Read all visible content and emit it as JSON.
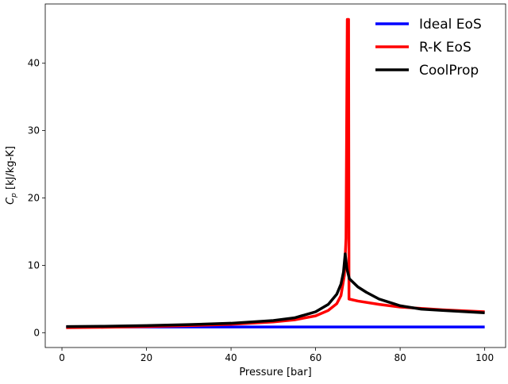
{
  "chart_data": {
    "type": "line",
    "title": "",
    "xlabel": "Pressure [bar]",
    "ylabel_main": "C",
    "ylabel_sub": "p",
    "ylabel_rest": " [kJ/kg-K]",
    "xlim": [
      -3.95,
      104.95
    ],
    "ylim": [
      -2.2,
      48.8
    ],
    "xticks": [
      0,
      20,
      40,
      60,
      80,
      100
    ],
    "yticks": [
      0,
      10,
      20,
      30,
      40
    ],
    "grid": false,
    "legend_position": "top-right",
    "series": [
      {
        "name": "Ideal EoS",
        "color": "#0000ff",
        "points": [
          [
            1,
            0.85
          ],
          [
            100,
            0.85
          ]
        ]
      },
      {
        "name": "R-K EoS",
        "color": "#ff0000",
        "points": [
          [
            1,
            0.75
          ],
          [
            10,
            0.8
          ],
          [
            20,
            0.9
          ],
          [
            30,
            1.05
          ],
          [
            40,
            1.25
          ],
          [
            50,
            1.6
          ],
          [
            55,
            1.9
          ],
          [
            60,
            2.5
          ],
          [
            63,
            3.3
          ],
          [
            65,
            4.3
          ],
          [
            66,
            5.5
          ],
          [
            66.8,
            8.5
          ],
          [
            67.2,
            14
          ],
          [
            67.5,
            46.5
          ],
          [
            67.8,
            46.5
          ],
          [
            67.9,
            5.0
          ],
          [
            70,
            4.7
          ],
          [
            75,
            4.2
          ],
          [
            80,
            3.8
          ],
          [
            90,
            3.4
          ],
          [
            100,
            3.1
          ]
        ]
      },
      {
        "name": "CoolProp",
        "color": "#000000",
        "points": [
          [
            1,
            0.9
          ],
          [
            10,
            0.95
          ],
          [
            20,
            1.05
          ],
          [
            30,
            1.2
          ],
          [
            40,
            1.4
          ],
          [
            50,
            1.8
          ],
          [
            55,
            2.2
          ],
          [
            60,
            3.1
          ],
          [
            63,
            4.2
          ],
          [
            65,
            5.7
          ],
          [
            66,
            7.2
          ],
          [
            66.6,
            9
          ],
          [
            67,
            11.7
          ],
          [
            67.4,
            9.5
          ],
          [
            68,
            8
          ],
          [
            70,
            6.8
          ],
          [
            72,
            6
          ],
          [
            75,
            5
          ],
          [
            80,
            4
          ],
          [
            85,
            3.5
          ],
          [
            90,
            3.3
          ],
          [
            100,
            2.95
          ]
        ]
      }
    ]
  }
}
